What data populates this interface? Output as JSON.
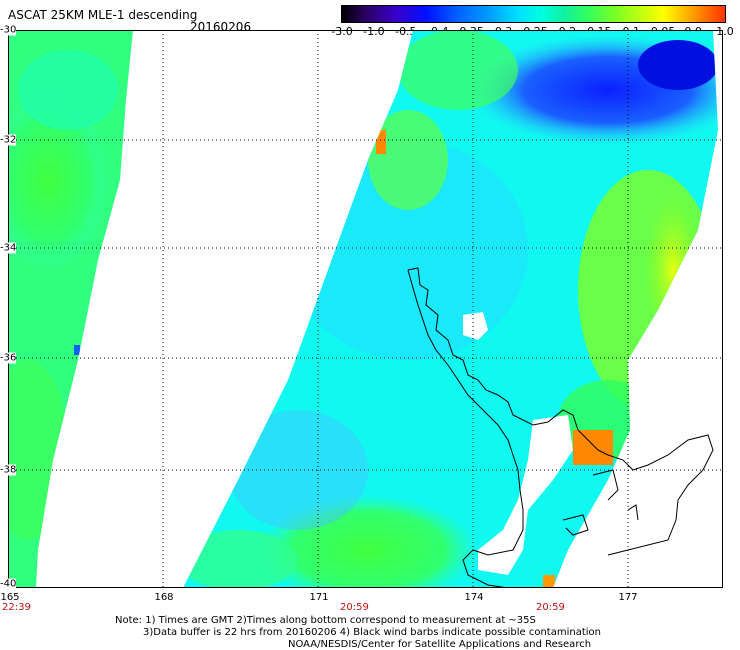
{
  "title": "ASCAT 25KM MLE-1 descending",
  "date": "20160206",
  "colorbar": {
    "tick_labels": [
      "-3.0",
      "-1.0",
      "-0.5",
      "-0.4",
      "-0.35",
      "-0.3",
      "-0.25",
      "-0.2",
      "-0.15",
      "-0.1",
      "-0.05",
      "0.0",
      "1.0"
    ]
  },
  "map": {
    "lat_labels": [
      "-30",
      "-32",
      "-34",
      "-36",
      "-38",
      "-40"
    ],
    "lon_labels": [
      "165",
      "168",
      "171",
      "174",
      "177"
    ],
    "pass_times": [
      "22:39",
      "20:59",
      "20:59"
    ]
  },
  "notes": {
    "line1": "Note: 1) Times are GMT 2)Times along bottom correspond to measurement at ~35S",
    "line2": "3)Data buffer is 22 hrs from 20160206 4) Black wind barbs indicate possible contamination",
    "line3": "NOAA/NESDIS/Center for Satellite Applications and Research"
  }
}
